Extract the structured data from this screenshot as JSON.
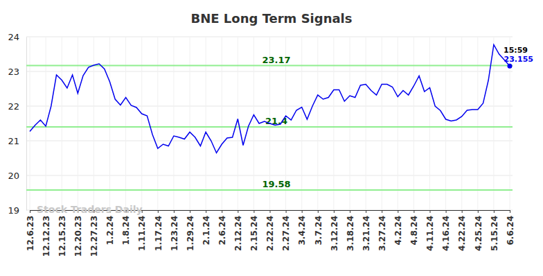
{
  "chart_data": {
    "type": "line",
    "title": "BNE Long Term Signals",
    "categories": [
      "12.6.23",
      null,
      null,
      "12.12.23",
      null,
      null,
      "12.15.23",
      null,
      null,
      "12.20.23",
      null,
      null,
      "12.27.23",
      null,
      null,
      "1.2.24",
      null,
      null,
      "1.8.24",
      null,
      null,
      "1.11.24",
      null,
      null,
      "1.17.24",
      null,
      null,
      "1.23.24",
      null,
      null,
      "1.29.24",
      null,
      null,
      "2.1.24",
      null,
      null,
      "2.6.24",
      null,
      null,
      "2.12.24",
      null,
      null,
      "2.15.24",
      null,
      null,
      "2.22.24",
      null,
      null,
      "2.27.24",
      null,
      null,
      "3.4.24",
      null,
      null,
      "3.7.24",
      null,
      null,
      "3.12.24",
      null,
      null,
      "3.18.24",
      null,
      null,
      "3.21.24",
      null,
      null,
      "3.27.24",
      null,
      null,
      "4.2.24",
      null,
      null,
      "4.8.24",
      null,
      null,
      "4.11.24",
      null,
      null,
      "4.16.24",
      null,
      null,
      "4.22.24",
      null,
      null,
      "4.25.24",
      null,
      null,
      "5.15.24",
      null,
      null,
      "6.6.24"
    ],
    "values": [
      21.27,
      21.45,
      21.6,
      21.42,
      22.0,
      22.9,
      22.75,
      22.52,
      22.9,
      22.37,
      22.88,
      23.12,
      23.18,
      23.22,
      23.07,
      22.7,
      22.2,
      22.03,
      22.25,
      22.02,
      21.96,
      21.78,
      21.72,
      21.18,
      20.78,
      20.9,
      20.85,
      21.14,
      21.1,
      21.05,
      21.25,
      21.1,
      20.85,
      21.25,
      21.0,
      20.65,
      20.9,
      21.08,
      21.1,
      21.63,
      20.87,
      21.42,
      21.75,
      21.5,
      21.56,
      21.5,
      21.45,
      21.48,
      21.72,
      21.6,
      21.88,
      21.97,
      21.62,
      22.0,
      22.32,
      22.2,
      22.25,
      22.47,
      22.47,
      22.14,
      22.3,
      22.25,
      22.6,
      22.63,
      22.45,
      22.32,
      22.63,
      22.63,
      22.55,
      22.27,
      22.45,
      22.32,
      22.58,
      22.87,
      22.42,
      22.53,
      22.0,
      21.87,
      21.62,
      21.57,
      21.6,
      21.7,
      21.88,
      21.9,
      21.9,
      22.08,
      22.75,
      23.77,
      23.5,
      23.33,
      23.155
    ],
    "color": "#0000ee",
    "ylim": [
      19,
      24
    ],
    "yticks": [
      19,
      20,
      21,
      22,
      23,
      24
    ],
    "grid": true,
    "reference_lines": [
      {
        "value": 23.17
      },
      {
        "value": 21.4
      },
      {
        "value": 19.58
      }
    ],
    "annotations": [
      {
        "text": "15:59"
      },
      {
        "text": "Stock Traders Daily"
      }
    ]
  }
}
